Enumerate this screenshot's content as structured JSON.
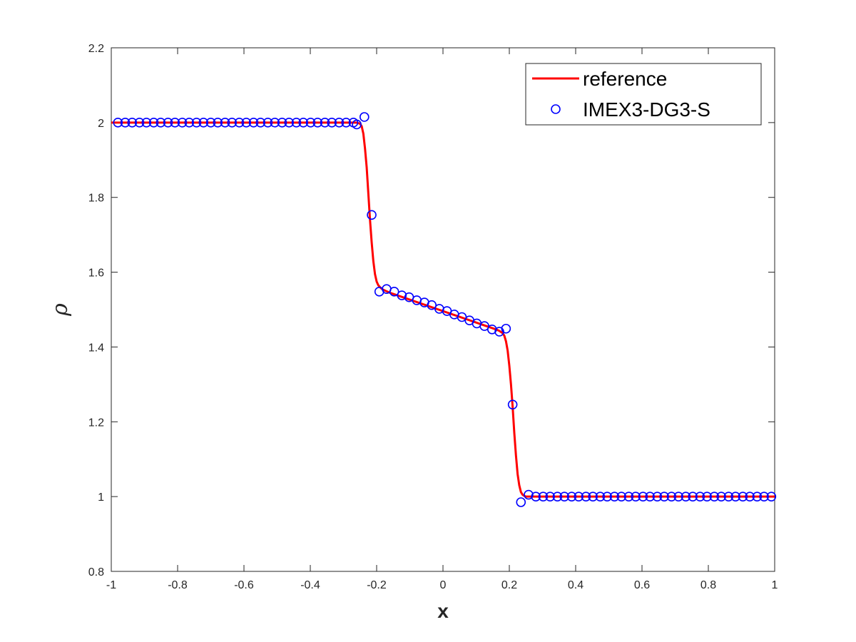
{
  "chart_data": {
    "type": "line",
    "xlabel": "x",
    "ylabel": "ρ",
    "xlim": [
      -1,
      1
    ],
    "ylim": [
      0.8,
      2.2
    ],
    "x_ticks": [
      -1,
      -0.8,
      -0.6,
      -0.4,
      -0.2,
      0,
      0.2,
      0.4,
      0.6,
      0.8,
      1
    ],
    "x_tick_labels": [
      "-1",
      "-0.8",
      "-0.6",
      "-0.4",
      "-0.2",
      "0",
      "0.2",
      "0.4",
      "0.6",
      "0.8",
      "1"
    ],
    "y_ticks": [
      0.8,
      1,
      1.2,
      1.4,
      1.6,
      1.8,
      2,
      2.2
    ],
    "y_tick_labels": [
      "0.8",
      "1",
      "1.2",
      "1.4",
      "1.6",
      "1.8",
      "2",
      "2.2"
    ],
    "grid": false,
    "legend_position": "top-right",
    "series": [
      {
        "name": "reference",
        "style": "line",
        "color": "#ff0000",
        "x": [
          -1.0,
          -0.26,
          -0.25,
          -0.245,
          -0.24,
          -0.235,
          -0.23,
          -0.225,
          -0.22,
          -0.215,
          -0.21,
          -0.205,
          -0.2,
          -0.195,
          -0.19,
          -0.185,
          -0.18,
          -0.17,
          -0.16,
          0.16,
          0.17,
          0.18,
          0.185,
          0.19,
          0.195,
          0.2,
          0.205,
          0.21,
          0.215,
          0.22,
          0.225,
          0.23,
          0.235,
          0.24,
          0.245,
          0.25,
          0.26,
          1.0
        ],
        "y": [
          2.0,
          2.0,
          1.997,
          1.99,
          1.97,
          1.93,
          1.88,
          1.81,
          1.74,
          1.68,
          1.63,
          1.595,
          1.575,
          1.565,
          1.56,
          1.556,
          1.553,
          1.549,
          1.545,
          1.447,
          1.443,
          1.437,
          1.43,
          1.415,
          1.39,
          1.35,
          1.3,
          1.24,
          1.17,
          1.11,
          1.06,
          1.03,
          1.012,
          1.005,
          1.002,
          1.0,
          1.0,
          1.0
        ]
      },
      {
        "name": "IMEX3-DG3-S",
        "style": "marker",
        "marker": "circle",
        "color": "#0000ff",
        "x": [
          -0.98,
          -0.958,
          -0.937,
          -0.915,
          -0.894,
          -0.872,
          -0.851,
          -0.829,
          -0.808,
          -0.786,
          -0.765,
          -0.743,
          -0.722,
          -0.7,
          -0.679,
          -0.657,
          -0.636,
          -0.614,
          -0.593,
          -0.571,
          -0.55,
          -0.528,
          -0.507,
          -0.485,
          -0.464,
          -0.442,
          -0.421,
          -0.399,
          -0.378,
          -0.356,
          -0.335,
          -0.313,
          -0.292,
          -0.27,
          -0.26,
          -0.237,
          -0.215,
          -0.192,
          -0.17,
          -0.147,
          -0.124,
          -0.102,
          -0.079,
          -0.056,
          -0.034,
          -0.011,
          0.012,
          0.034,
          0.057,
          0.08,
          0.102,
          0.125,
          0.148,
          0.17,
          0.19,
          0.21,
          0.235,
          0.258,
          0.28,
          0.302,
          0.323,
          0.345,
          0.366,
          0.388,
          0.409,
          0.431,
          0.452,
          0.474,
          0.495,
          0.517,
          0.538,
          0.56,
          0.581,
          0.603,
          0.624,
          0.646,
          0.667,
          0.689,
          0.71,
          0.732,
          0.753,
          0.775,
          0.796,
          0.818,
          0.839,
          0.861,
          0.882,
          0.904,
          0.925,
          0.947,
          0.968,
          0.99
        ],
        "y": [
          2.0,
          2.0,
          2.0,
          2.0,
          2.0,
          2.0,
          2.0,
          2.0,
          2.0,
          2.0,
          2.0,
          2.0,
          2.0,
          2.0,
          2.0,
          2.0,
          2.0,
          2.0,
          2.0,
          2.0,
          2.0,
          2.0,
          2.0,
          2.0,
          2.0,
          2.0,
          2.0,
          2.0,
          2.0,
          2.0,
          2.0,
          2.0,
          2.0,
          2.0,
          1.995,
          2.015,
          1.753,
          1.548,
          1.555,
          1.548,
          1.538,
          1.533,
          1.525,
          1.519,
          1.512,
          1.502,
          1.496,
          1.487,
          1.48,
          1.471,
          1.463,
          1.456,
          1.447,
          1.441,
          1.449,
          1.246,
          0.985,
          1.005,
          1.0,
          1.0,
          1.0,
          1.0,
          1.0,
          1.0,
          1.0,
          1.0,
          1.0,
          1.0,
          1.0,
          1.0,
          1.0,
          1.0,
          1.0,
          1.0,
          1.0,
          1.0,
          1.0,
          1.0,
          1.0,
          1.0,
          1.0,
          1.0,
          1.0,
          1.0,
          1.0,
          1.0,
          1.0,
          1.0,
          1.0,
          1.0,
          1.0,
          1.0
        ]
      }
    ]
  }
}
